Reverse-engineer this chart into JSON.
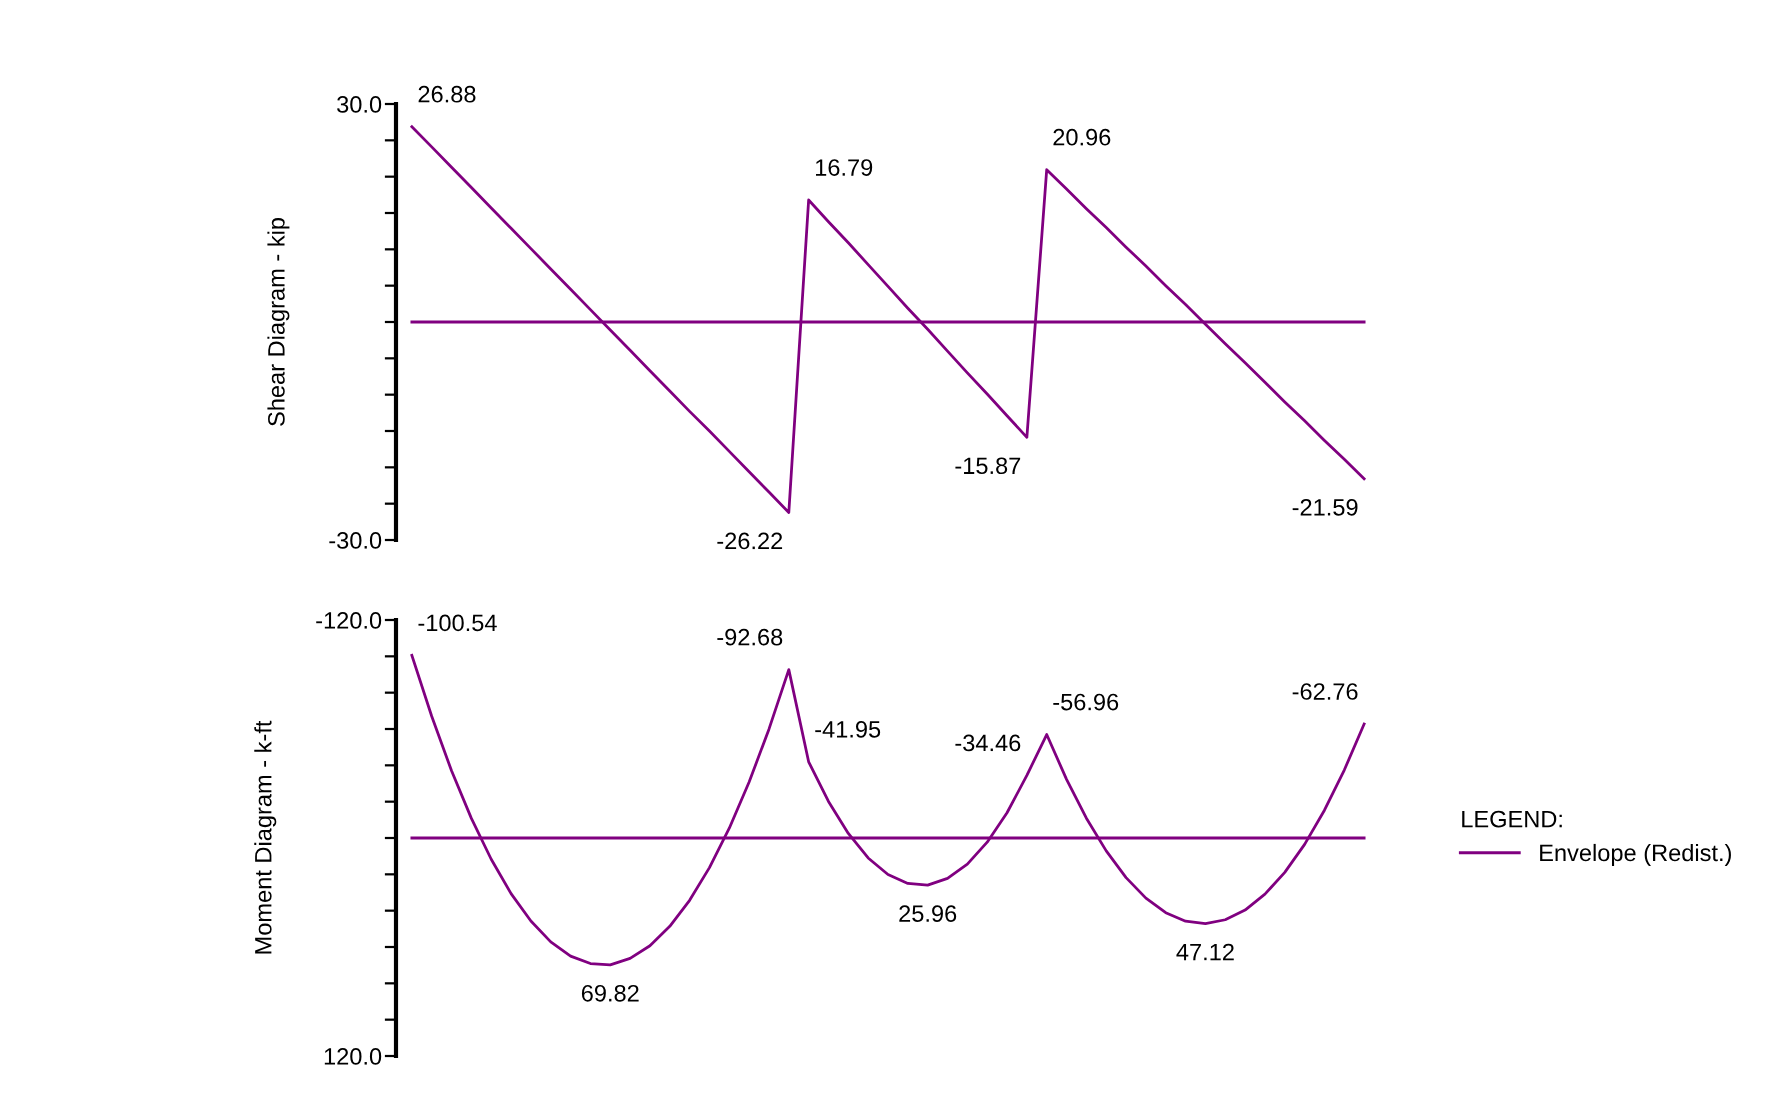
{
  "chart_data": [
    {
      "type": "line",
      "ylabel": "Shear Diagram - kip",
      "tick_labels": "y",
      "legend": false,
      "marker": "none",
      "line_style": "solid",
      "categories": [
        null,
        null,
        null,
        null,
        null,
        null,
        null,
        null,
        null,
        null,
        null,
        null,
        null,
        null,
        null,
        null,
        null,
        null,
        null,
        null,
        null,
        null,
        null,
        null,
        null,
        null,
        null,
        null,
        null,
        null,
        null,
        null,
        null,
        null,
        null,
        null,
        null,
        null,
        null,
        null,
        null,
        null,
        null,
        null,
        null,
        null,
        null,
        null,
        null
      ],
      "ylim": [
        -30,
        30
      ],
      "yticks": [
        {
          "value": -30,
          "label": "-30.0"
        },
        {
          "value": -25,
          "label": null
        },
        {
          "value": -20,
          "label": null
        },
        {
          "value": -15,
          "label": null
        },
        {
          "value": -10,
          "label": null
        },
        {
          "value": -5,
          "label": null
        },
        {
          "value": 0,
          "label": null
        },
        {
          "value": 5,
          "label": null
        },
        {
          "value": 10,
          "label": null
        },
        {
          "value": 15,
          "label": null
        },
        {
          "value": 20,
          "label": null
        },
        {
          "value": 25,
          "label": null
        },
        {
          "value": 30,
          "label": "30.0"
        }
      ],
      "series": [
        {
          "color": "#800080",
          "values": [
            26.88,
            24.1,
            21.3,
            18.5,
            15.7,
            12.9,
            10.1,
            7.3,
            4.5,
            1.7,
            -1.1,
            -3.9,
            -6.7,
            -9.5,
            -12.3,
            -15.0,
            -17.8,
            -20.6,
            -23.4,
            -26.22,
            16.79,
            13.8,
            10.9,
            7.9,
            4.9,
            1.9,
            -1.0,
            -4.0,
            -7.0,
            -9.9,
            -12.9,
            -15.87,
            20.96,
            18.3,
            15.6,
            13.0,
            10.3,
            7.7,
            5.0,
            2.4,
            -0.3,
            -3.0,
            -5.6,
            -8.3,
            -11.0,
            -13.6,
            -16.3,
            -18.9,
            -21.59
          ],
          "value_labels": [
            "26.88",
            null,
            null,
            null,
            null,
            null,
            null,
            null,
            null,
            null,
            null,
            null,
            null,
            null,
            null,
            null,
            null,
            null,
            null,
            "-26.22",
            "16.79",
            null,
            null,
            null,
            null,
            null,
            null,
            null,
            null,
            null,
            null,
            "-15.87",
            "20.96",
            null,
            null,
            null,
            null,
            null,
            null,
            null,
            null,
            null,
            null,
            null,
            null,
            null,
            null,
            null,
            "-21.59"
          ]
        }
      ],
      "ref_lines": [
        {
          "axis": "y",
          "value": 0,
          "color": "#800080",
          "line_style": "solid"
        }
      ]
    },
    {
      "type": "line",
      "ylabel": "Moment Diagram - k-ft",
      "tick_labels": "y",
      "legend": "right",
      "legend_title": "LEGEND:",
      "marker": "none",
      "line_style": "solid",
      "categories": [
        null,
        null,
        null,
        null,
        null,
        null,
        null,
        null,
        null,
        null,
        null,
        null,
        null,
        null,
        null,
        null,
        null,
        null,
        null,
        null,
        null,
        null,
        null,
        null,
        null,
        null,
        null,
        null,
        null,
        null,
        null,
        null,
        null,
        null,
        null,
        null,
        null,
        null,
        null,
        null,
        null,
        null,
        null,
        null,
        null,
        null,
        null,
        null,
        null
      ],
      "ylim": [
        120,
        -120
      ],
      "yticks": [
        {
          "value": -120,
          "label": "-120.0"
        },
        {
          "value": -100,
          "label": null
        },
        {
          "value": -80,
          "label": null
        },
        {
          "value": -60,
          "label": null
        },
        {
          "value": -40,
          "label": null
        },
        {
          "value": -20,
          "label": null
        },
        {
          "value": 0,
          "label": null
        },
        {
          "value": 20,
          "label": null
        },
        {
          "value": 40,
          "label": null
        },
        {
          "value": 60,
          "label": null
        },
        {
          "value": 80,
          "label": null
        },
        {
          "value": 100,
          "label": null
        },
        {
          "value": 120,
          "label": "120.0"
        }
      ],
      "series": [
        {
          "name": "Envelope (Redist.)",
          "color": "#800080",
          "values": [
            -100.54,
            -67.0,
            -37.0,
            -10.8,
            11.7,
            30.6,
            45.7,
            57.2,
            65.0,
            69.1,
            69.82,
            66.3,
            59.3,
            48.6,
            34.3,
            16.3,
            -5.4,
            -30.8,
            -59.9,
            -92.68,
            -41.95,
            -20.1,
            -2.5,
            11.0,
            20.1,
            25.0,
            25.96,
            22.2,
            14.4,
            2.3,
            -13.9,
            -34.46,
            -56.96,
            -32.3,
            -10.9,
            7.1,
            21.8,
            33.1,
            41.1,
            45.8,
            47.12,
            45.0,
            39.7,
            30.9,
            18.9,
            3.5,
            -15.3,
            -37.4,
            -62.76
          ],
          "value_labels": [
            "-100.54",
            null,
            null,
            null,
            null,
            null,
            null,
            null,
            null,
            null,
            "69.82",
            null,
            null,
            null,
            null,
            null,
            null,
            null,
            null,
            "-92.68",
            "-41.95",
            null,
            null,
            null,
            null,
            null,
            "25.96",
            null,
            null,
            null,
            null,
            "-34.46",
            "-56.96",
            null,
            null,
            null,
            null,
            null,
            null,
            null,
            "47.12",
            null,
            null,
            null,
            null,
            null,
            null,
            null,
            "-62.76"
          ]
        }
      ],
      "ref_lines": [
        {
          "axis": "y",
          "value": 0,
          "color": "#800080",
          "line_style": "solid"
        }
      ]
    }
  ]
}
